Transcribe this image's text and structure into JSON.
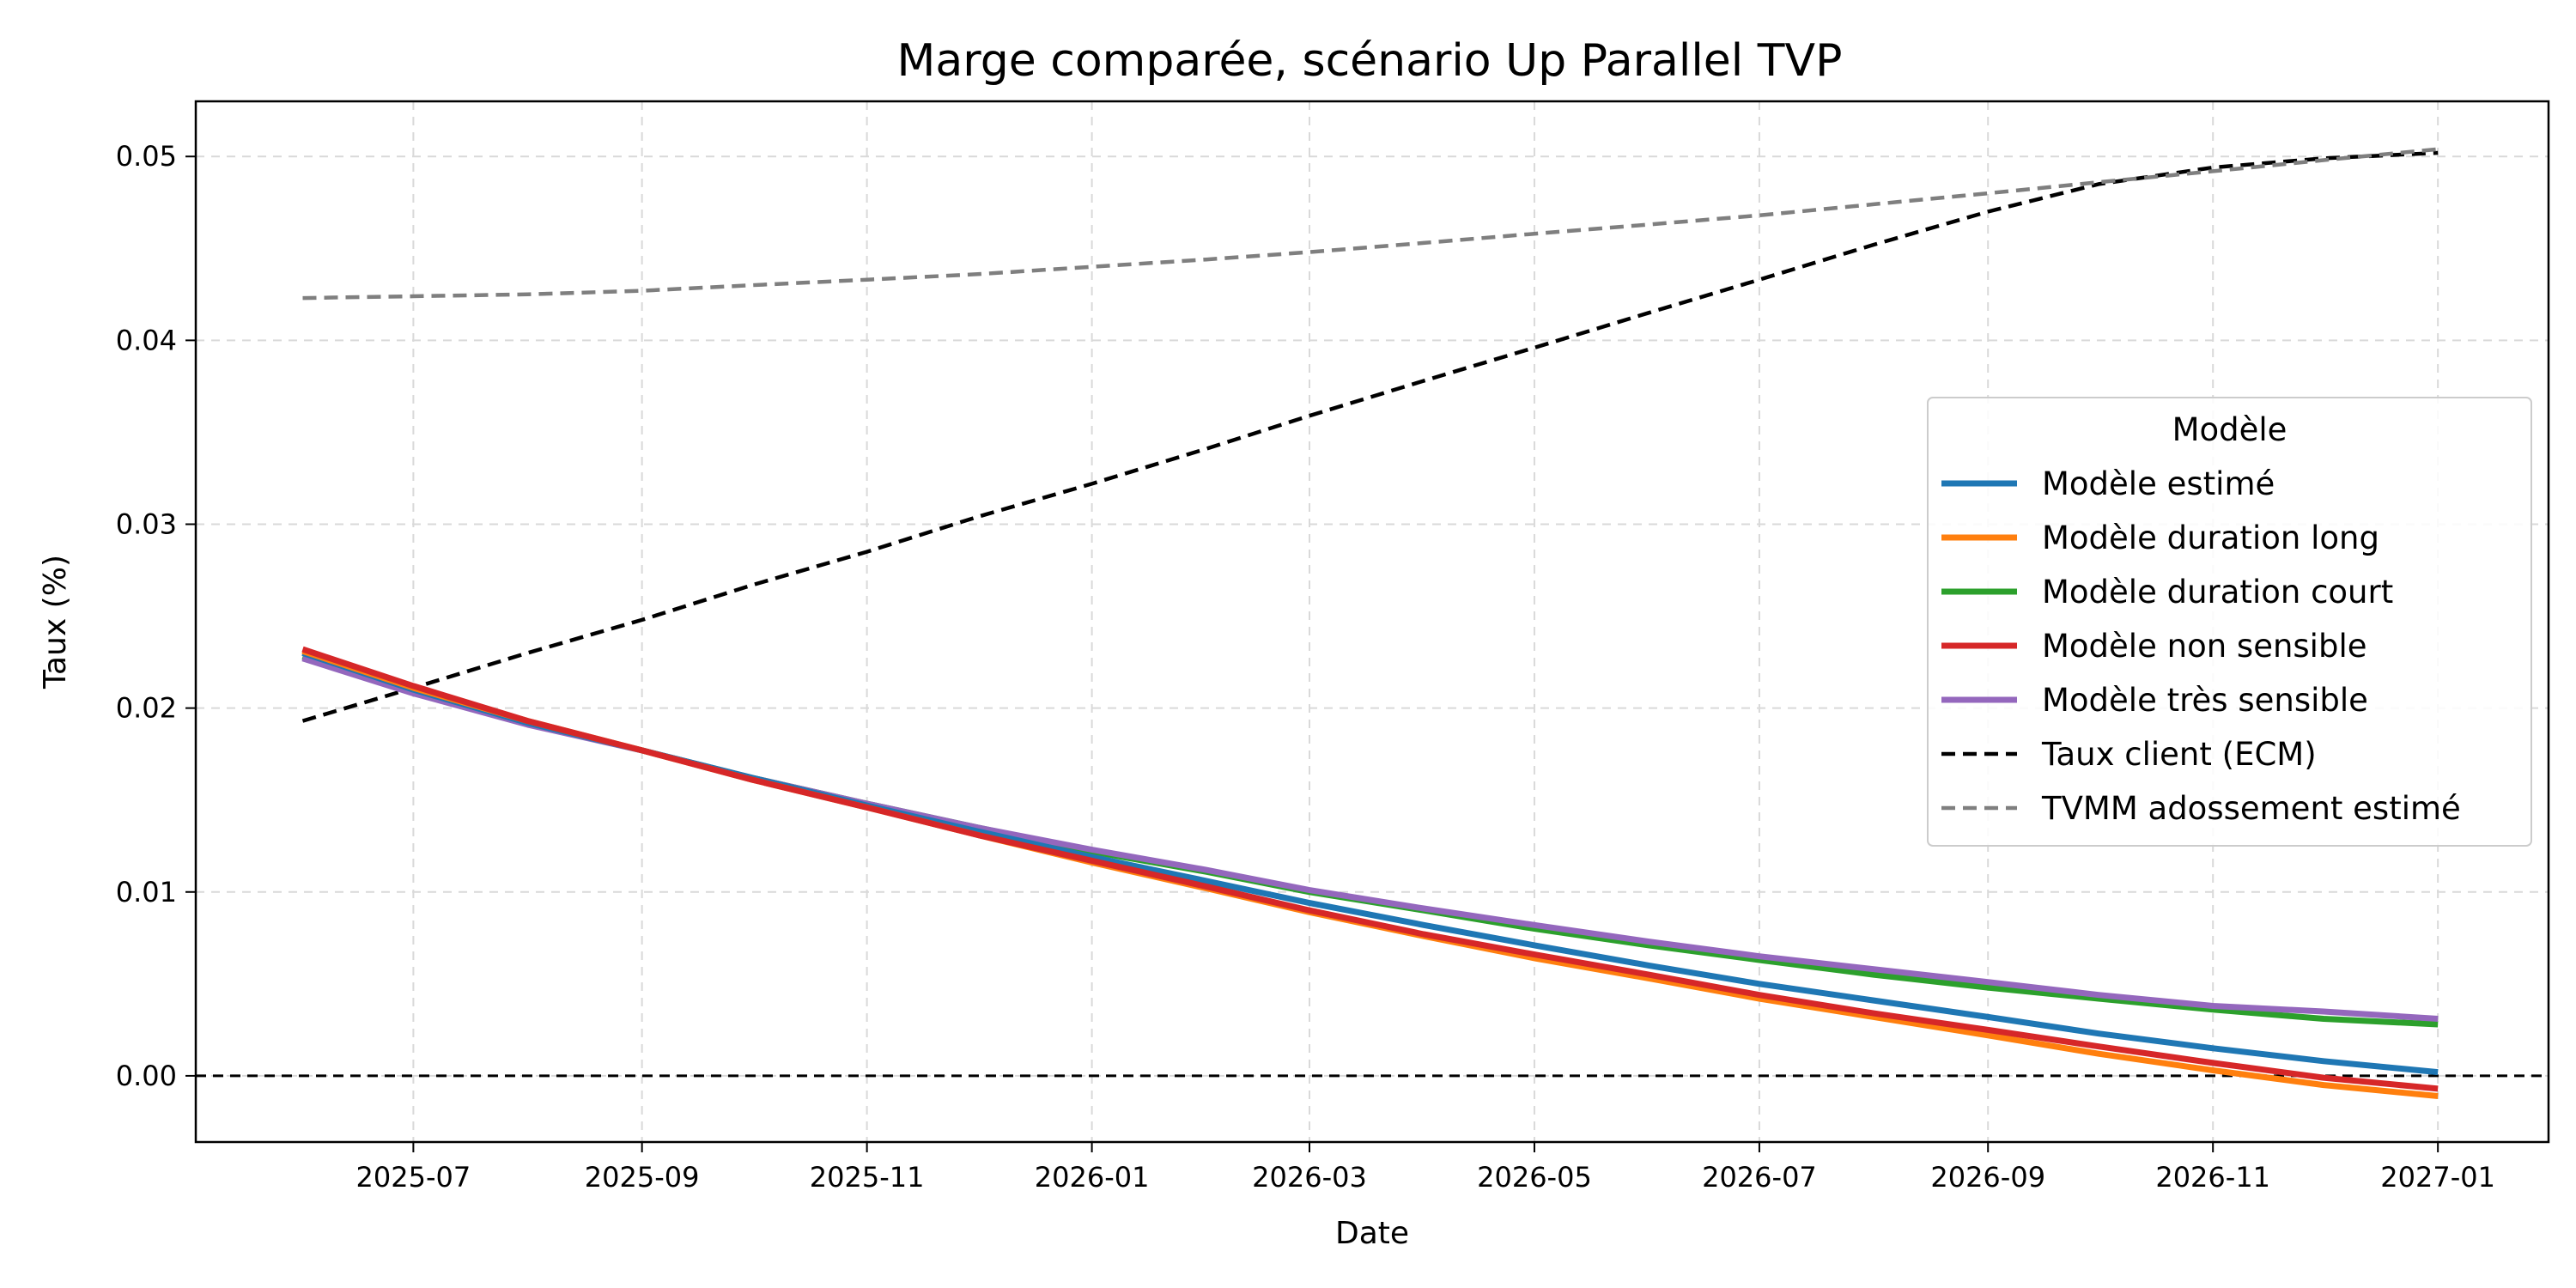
{
  "chart_data": {
    "type": "line",
    "title": "Marge comparée, scénario Up Parallel TVP",
    "xlabel": "Date",
    "ylabel": "Taux (%)",
    "x": [
      "2025-06-01",
      "2025-07-01",
      "2025-08-01",
      "2025-09-01",
      "2025-10-01",
      "2025-11-01",
      "2025-12-01",
      "2026-01-01",
      "2026-02-01",
      "2026-03-01",
      "2026-04-01",
      "2026-05-01",
      "2026-06-01",
      "2026-07-01",
      "2026-08-01",
      "2026-09-01",
      "2026-10-01",
      "2026-11-01",
      "2026-12-01",
      "2027-01-01"
    ],
    "xlim": [
      "2025-05-03",
      "2027-01-31"
    ],
    "xticks": [
      "2025-07",
      "2025-09",
      "2025-11",
      "2026-01",
      "2026-03",
      "2026-05",
      "2026-07",
      "2026-09",
      "2026-11",
      "2027-01"
    ],
    "ylim": [
      -0.0036,
      0.053
    ],
    "yticks": [
      "0.00",
      "0.01",
      "0.02",
      "0.03",
      "0.04",
      "0.05"
    ],
    "grid": true,
    "legend_title": "Modèle",
    "legend_position": "center-right",
    "series": [
      {
        "name": "Modèle estimé",
        "color": "#1f77b4",
        "style": "solid",
        "values": [
          0.023,
          0.021,
          0.0192,
          0.0177,
          0.0162,
          0.0147,
          0.0133,
          0.0119,
          0.0106,
          0.0094,
          0.0082,
          0.0071,
          0.006,
          0.005,
          0.0041,
          0.0032,
          0.0023,
          0.0015,
          0.0008,
          0.0002
        ]
      },
      {
        "name": "Modèle duration long",
        "color": "#ff7f0e",
        "style": "solid",
        "values": [
          0.0231,
          0.0211,
          0.0193,
          0.0177,
          0.0161,
          0.0146,
          0.0131,
          0.0116,
          0.0102,
          0.0089,
          0.0076,
          0.0064,
          0.0053,
          0.0042,
          0.0032,
          0.0022,
          0.0012,
          0.0003,
          -0.0005,
          -0.0011
        ]
      },
      {
        "name": "Modèle duration court",
        "color": "#2ca02c",
        "style": "solid",
        "values": [
          0.0228,
          0.0209,
          0.0192,
          0.0177,
          0.0162,
          0.0148,
          0.0135,
          0.0122,
          0.0111,
          0.01,
          0.009,
          0.008,
          0.0071,
          0.0063,
          0.0055,
          0.0048,
          0.0042,
          0.0036,
          0.0031,
          0.0028
        ]
      },
      {
        "name": "Modèle non sensible",
        "color": "#d62728",
        "style": "solid",
        "values": [
          0.0232,
          0.0212,
          0.0193,
          0.0177,
          0.0161,
          0.0146,
          0.0131,
          0.0117,
          0.0103,
          0.009,
          0.0077,
          0.0066,
          0.0055,
          0.0044,
          0.0034,
          0.0025,
          0.0016,
          0.0007,
          -0.0001,
          -0.0007
        ]
      },
      {
        "name": "Modèle très sensible",
        "color": "#9467bd",
        "style": "solid",
        "values": [
          0.0227,
          0.0208,
          0.0191,
          0.0177,
          0.0162,
          0.0148,
          0.0135,
          0.0123,
          0.0112,
          0.0101,
          0.0091,
          0.0082,
          0.0073,
          0.0065,
          0.0058,
          0.0051,
          0.0044,
          0.0038,
          0.0035,
          0.0031
        ]
      },
      {
        "name": "Taux client (ECM)",
        "color": "#000000",
        "style": "dashed",
        "values": [
          0.0193,
          0.0211,
          0.023,
          0.0248,
          0.0267,
          0.0285,
          0.0304,
          0.0322,
          0.0341,
          0.0359,
          0.0378,
          0.0396,
          0.0415,
          0.0433,
          0.0452,
          0.047,
          0.0485,
          0.0494,
          0.0499,
          0.0502
        ]
      },
      {
        "name": "TVMM adossement estimé",
        "color": "#7f7f7f",
        "style": "dashed",
        "values": [
          0.0423,
          0.0424,
          0.0425,
          0.0427,
          0.043,
          0.0433,
          0.0436,
          0.044,
          0.0444,
          0.0448,
          0.0453,
          0.0458,
          0.0463,
          0.0468,
          0.0474,
          0.048,
          0.0486,
          0.0492,
          0.0498,
          0.0504
        ]
      }
    ],
    "reference_lines": [
      {
        "axis": "y",
        "value": 0.0,
        "color": "#000000",
        "style": "dashed"
      }
    ]
  }
}
